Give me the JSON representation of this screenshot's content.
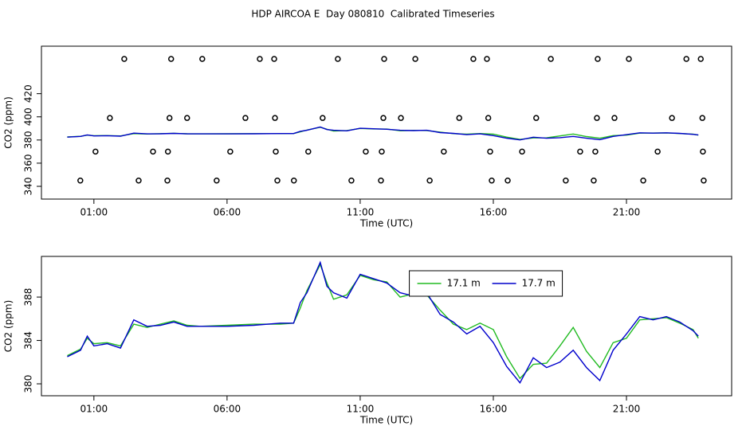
{
  "chart_data": [
    {
      "type": "line",
      "title": "HDP AIRCOA E  Day 080810  Calibrated Timeseries",
      "xlabel": "Time (UTC)",
      "ylabel": "CO2 (ppm)",
      "xlim": [
        -0.97,
        24.95
      ],
      "ylim": [
        329,
        461
      ],
      "xticks": [
        {
          "value": 1,
          "label": "01:00"
        },
        {
          "value": 6,
          "label": "06:00"
        },
        {
          "value": 11,
          "label": "11:00"
        },
        {
          "value": 16,
          "label": "16:00"
        },
        {
          "value": 21,
          "label": "21:00"
        }
      ],
      "yticks": [
        340,
        360,
        380,
        400,
        420
      ],
      "x": [
        0,
        0.5,
        0.75,
        1,
        1.5,
        2,
        2.5,
        3,
        3.5,
        4,
        4.5,
        5,
        6,
        7,
        8,
        8.5,
        8.75,
        9,
        9.5,
        9.75,
        10,
        10.5,
        11,
        11.5,
        12,
        12.5,
        13,
        13.5,
        14,
        14.5,
        15,
        15.5,
        16,
        16.5,
        17,
        17.5,
        18,
        18.5,
        19,
        19.5,
        20,
        20.5,
        21,
        21.5,
        22,
        22.5,
        23,
        23.5,
        23.7
      ],
      "series": [
        {
          "color": "#22bb22",
          "values": [
            382.6,
            383.2,
            384.2,
            383.7,
            383.8,
            383.5,
            385.5,
            385.2,
            385.5,
            385.8,
            385.4,
            385.3,
            385.4,
            385.5,
            385.5,
            385.6,
            387.0,
            388.6,
            391.0,
            389.3,
            387.8,
            388.2,
            390.0,
            389.6,
            389.4,
            388.0,
            388.3,
            388.2,
            386.8,
            385.5,
            385.0,
            385.6,
            385.0,
            382.5,
            380.5,
            381.8,
            381.9,
            383.5,
            385.2,
            383.0,
            381.5,
            383.8,
            384.2,
            385.9,
            386.0,
            386.1,
            385.6,
            385.0,
            384.2
          ]
        },
        {
          "color": "#0000cc",
          "values": [
            382.5,
            383.1,
            384.4,
            383.5,
            383.7,
            383.3,
            385.9,
            385.3,
            385.4,
            385.7,
            385.3,
            385.3,
            385.3,
            385.4,
            385.6,
            385.6,
            387.5,
            388.4,
            391.2,
            389.0,
            388.4,
            387.9,
            390.1,
            389.7,
            389.3,
            388.4,
            388.1,
            388.4,
            386.4,
            385.7,
            384.6,
            385.3,
            383.8,
            381.6,
            380.1,
            382.4,
            381.5,
            382.0,
            383.1,
            381.5,
            380.3,
            383.1,
            384.6,
            386.2,
            385.9,
            386.2,
            385.7,
            384.9,
            384.4
          ]
        }
      ],
      "points": {
        "color": "#000000",
        "x": [
          2.14,
          3.9,
          5.07,
          7.23,
          7.77,
          10.16,
          11.9,
          13.07,
          15.25,
          15.76,
          18.16,
          19.92,
          21.09,
          23.25,
          23.79,
          1.6,
          3.84,
          4.5,
          6.69,
          7.8,
          9.59,
          11.87,
          12.53,
          14.72,
          15.81,
          17.61,
          19.89,
          20.55,
          22.71,
          23.85,
          1.06,
          3.22,
          3.78,
          6.12,
          7.83,
          9.05,
          11.21,
          11.81,
          14.14,
          15.88,
          17.08,
          19.26,
          19.83,
          22.17,
          23.87,
          0.49,
          2.68,
          3.76,
          5.61,
          7.89,
          8.51,
          10.67,
          11.78,
          13.61,
          15.94,
          16.54,
          18.72,
          19.77,
          21.63,
          23.9
        ],
        "y": [
          450,
          450,
          450,
          450,
          450,
          450,
          450,
          450,
          450,
          450,
          450,
          450,
          450,
          450,
          450,
          399,
          399,
          399,
          399,
          399,
          399,
          399,
          399,
          399,
          399,
          399,
          399,
          399,
          399,
          399,
          370,
          370,
          370,
          370,
          370,
          370,
          370,
          370,
          370,
          370,
          370,
          370,
          370,
          370,
          370,
          345,
          345,
          345,
          345,
          345,
          345,
          345,
          345,
          345,
          345,
          345,
          345,
          345,
          345,
          345
        ]
      }
    },
    {
      "type": "line",
      "xlabel": "Time (UTC)",
      "ylabel": "CO2 (ppm)",
      "xlim": [
        -0.97,
        24.95
      ],
      "ylim": [
        378.9,
        391.75
      ],
      "xticks": [
        {
          "value": 1,
          "label": "01:00"
        },
        {
          "value": 6,
          "label": "06:00"
        },
        {
          "value": 11,
          "label": "11:00"
        },
        {
          "value": 16,
          "label": "16:00"
        },
        {
          "value": 21,
          "label": "21:00"
        }
      ],
      "yticks": [
        380,
        384,
        388
      ],
      "legend": "top",
      "x": [
        0,
        0.5,
        0.75,
        1,
        1.5,
        2,
        2.5,
        3,
        3.5,
        4,
        4.5,
        5,
        6,
        7,
        8,
        8.5,
        8.75,
        9,
        9.5,
        9.75,
        10,
        10.5,
        11,
        11.5,
        12,
        12.5,
        13,
        13.5,
        14,
        14.5,
        15,
        15.5,
        16,
        16.5,
        17,
        17.5,
        18,
        18.5,
        19,
        19.5,
        20,
        20.5,
        21,
        21.5,
        22,
        22.5,
        23,
        23.5,
        23.7
      ],
      "series": [
        {
          "name": "17.1 m",
          "color": "#22bb22",
          "values": [
            382.6,
            383.2,
            384.2,
            383.7,
            383.8,
            383.5,
            385.5,
            385.2,
            385.5,
            385.8,
            385.4,
            385.3,
            385.4,
            385.5,
            385.5,
            385.6,
            387.0,
            388.6,
            391.0,
            389.3,
            387.8,
            388.2,
            390.0,
            389.6,
            389.4,
            388.0,
            388.3,
            388.2,
            386.8,
            385.5,
            385.0,
            385.6,
            385.0,
            382.5,
            380.5,
            381.8,
            381.9,
            383.5,
            385.2,
            383.0,
            381.5,
            383.8,
            384.2,
            385.9,
            386.0,
            386.1,
            385.6,
            385.0,
            384.2
          ]
        },
        {
          "name": "17.7 m",
          "color": "#0000cc",
          "values": [
            382.5,
            383.1,
            384.4,
            383.5,
            383.7,
            383.3,
            385.9,
            385.3,
            385.4,
            385.7,
            385.3,
            385.3,
            385.3,
            385.4,
            385.6,
            385.6,
            387.5,
            388.4,
            391.2,
            389.0,
            388.4,
            387.9,
            390.1,
            389.7,
            389.3,
            388.4,
            388.1,
            388.4,
            386.4,
            385.7,
            384.6,
            385.3,
            383.8,
            381.6,
            380.1,
            382.4,
            381.5,
            382.0,
            383.1,
            381.5,
            380.3,
            383.1,
            384.6,
            386.2,
            385.9,
            386.2,
            385.7,
            384.9,
            384.4
          ]
        }
      ]
    }
  ]
}
